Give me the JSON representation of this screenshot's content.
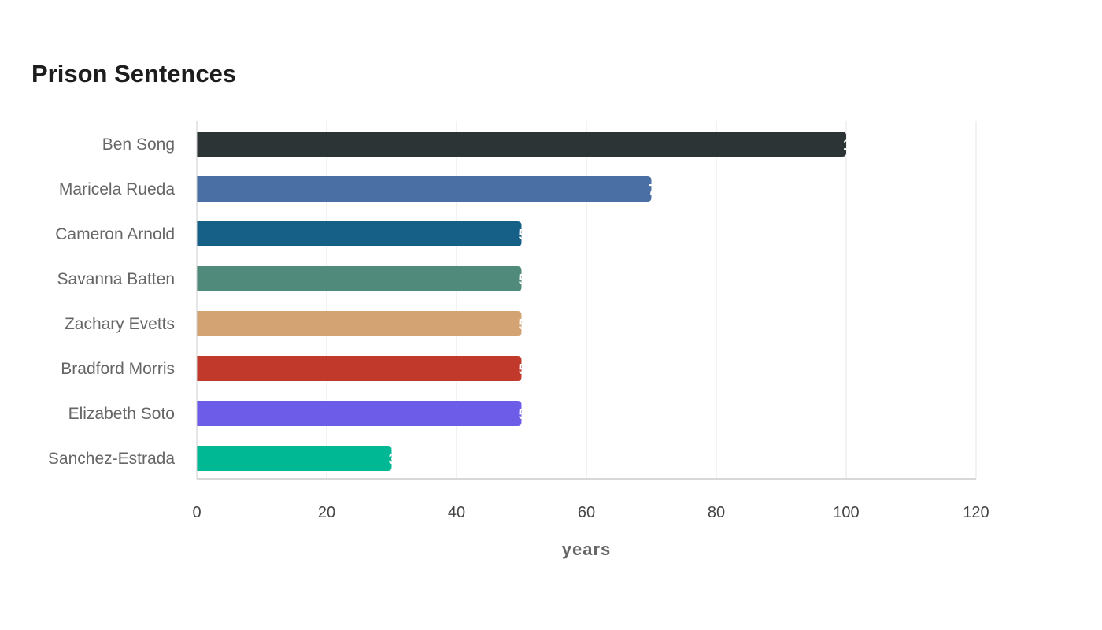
{
  "chart_data": {
    "type": "bar",
    "orientation": "horizontal",
    "title": "Prison Sentences",
    "xlabel": "years",
    "ylabel": "",
    "categories": [
      "Ben Song",
      "Maricela Rueda",
      "Cameron Arnold",
      "Savanna Batten",
      "Zachary Evetts",
      "Bradford Morris",
      "Elizabeth Soto",
      "Sanchez-Estrada"
    ],
    "values": [
      100,
      70,
      50,
      50,
      50,
      50,
      50,
      30
    ],
    "colors": [
      "#2d3436",
      "#4a6fa5",
      "#166088",
      "#4f8a7a",
      "#d4a373",
      "#c0392b",
      "#6c5ce7",
      "#00b894"
    ],
    "xlim": [
      0,
      120
    ],
    "xticks": [
      "0",
      "20",
      "40",
      "60",
      "80",
      "100",
      "120"
    ],
    "grid": true,
    "legend": "none"
  }
}
